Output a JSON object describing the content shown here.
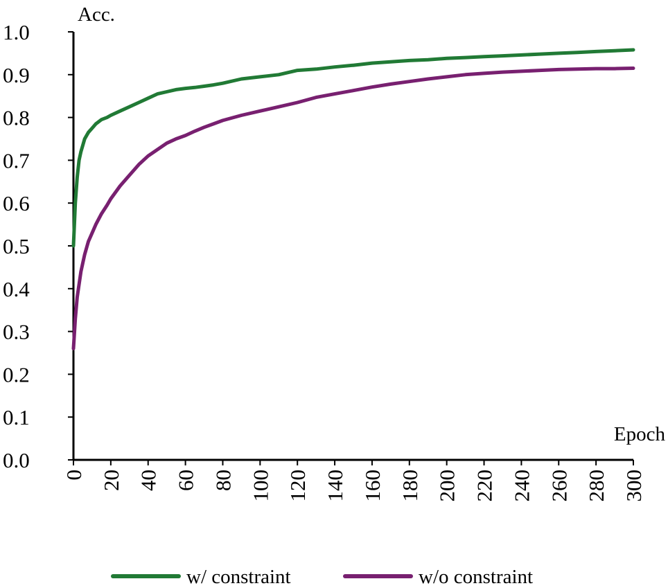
{
  "chart_data": {
    "type": "line",
    "x_label": "Epoch",
    "y_label": "Acc.",
    "xlim": [
      0,
      300
    ],
    "ylim": [
      0.0,
      1.0
    ],
    "x_ticks": [
      "0",
      "20",
      "40",
      "60",
      "80",
      "100",
      "120",
      "140",
      "160",
      "180",
      "200",
      "220",
      "240",
      "260",
      "280",
      "300"
    ],
    "y_ticks": [
      "0.0",
      "0.1",
      "0.2",
      "0.3",
      "0.4",
      "0.5",
      "0.6",
      "0.7",
      "0.8",
      "0.9",
      "1.0"
    ],
    "grid": false,
    "legend_position": "bottom",
    "series": [
      {
        "name": "w/ constraint",
        "color": "#217a35",
        "x": [
          0,
          1,
          2,
          3,
          4,
          5,
          6,
          8,
          10,
          12,
          15,
          18,
          20,
          25,
          30,
          35,
          40,
          45,
          50,
          55,
          60,
          65,
          70,
          75,
          80,
          90,
          100,
          110,
          120,
          130,
          140,
          150,
          160,
          170,
          180,
          190,
          200,
          210,
          220,
          230,
          240,
          250,
          260,
          270,
          280,
          290,
          300
        ],
        "values": [
          0.5,
          0.6,
          0.66,
          0.7,
          0.72,
          0.735,
          0.75,
          0.765,
          0.775,
          0.785,
          0.795,
          0.8,
          0.805,
          0.815,
          0.825,
          0.835,
          0.845,
          0.855,
          0.86,
          0.865,
          0.868,
          0.87,
          0.873,
          0.876,
          0.88,
          0.89,
          0.895,
          0.9,
          0.91,
          0.913,
          0.918,
          0.922,
          0.927,
          0.93,
          0.933,
          0.935,
          0.938,
          0.94,
          0.942,
          0.944,
          0.946,
          0.948,
          0.95,
          0.952,
          0.954,
          0.956,
          0.958
        ]
      },
      {
        "name": "w/o constraint",
        "color": "#782070",
        "x": [
          0,
          1,
          2,
          3,
          4,
          5,
          6,
          8,
          10,
          12,
          15,
          18,
          20,
          25,
          30,
          35,
          40,
          45,
          50,
          55,
          60,
          65,
          70,
          75,
          80,
          90,
          100,
          110,
          120,
          130,
          140,
          150,
          160,
          170,
          180,
          190,
          200,
          210,
          220,
          230,
          240,
          250,
          260,
          270,
          280,
          290,
          300
        ],
        "values": [
          0.26,
          0.33,
          0.38,
          0.41,
          0.44,
          0.46,
          0.48,
          0.51,
          0.53,
          0.55,
          0.575,
          0.595,
          0.61,
          0.64,
          0.665,
          0.69,
          0.71,
          0.725,
          0.74,
          0.75,
          0.758,
          0.768,
          0.777,
          0.785,
          0.793,
          0.805,
          0.815,
          0.825,
          0.835,
          0.847,
          0.855,
          0.863,
          0.871,
          0.878,
          0.884,
          0.89,
          0.895,
          0.9,
          0.903,
          0.906,
          0.908,
          0.91,
          0.912,
          0.913,
          0.914,
          0.914,
          0.915
        ]
      }
    ]
  }
}
